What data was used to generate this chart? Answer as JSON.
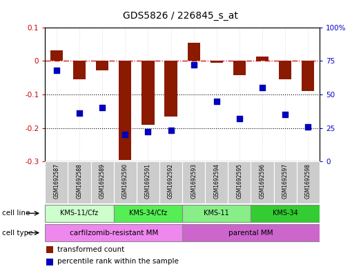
{
  "title": "GDS5826 / 226845_s_at",
  "samples": [
    "GSM1692587",
    "GSM1692588",
    "GSM1692589",
    "GSM1692590",
    "GSM1692591",
    "GSM1692592",
    "GSM1692593",
    "GSM1692594",
    "GSM1692595",
    "GSM1692596",
    "GSM1692597",
    "GSM1692598"
  ],
  "transformed_count": [
    0.032,
    -0.055,
    -0.028,
    -0.295,
    -0.19,
    -0.165,
    0.055,
    -0.005,
    -0.042,
    0.012,
    -0.055,
    -0.09
  ],
  "percentile_rank": [
    68,
    36,
    40,
    20,
    22,
    23,
    72,
    45,
    32,
    55,
    35,
    26
  ],
  "ylim_left": [
    -0.3,
    0.1
  ],
  "ylim_right": [
    0,
    100
  ],
  "yticks_left": [
    0.1,
    0.0,
    -0.1,
    -0.2,
    -0.3
  ],
  "ytick_labels_left": [
    "0.1",
    "0",
    "-0.1",
    "-0.2",
    "-0.3"
  ],
  "yticks_right": [
    100,
    75,
    50,
    25,
    0
  ],
  "ytick_labels_right": [
    "100%",
    "75",
    "50",
    "25",
    "0"
  ],
  "bar_color": "#8b1a00",
  "dot_color": "#0000bb",
  "cell_line_groups": [
    {
      "label": "KMS-11/Cfz",
      "indices": [
        0,
        1,
        2
      ],
      "color": "#ccffcc"
    },
    {
      "label": "KMS-34/Cfz",
      "indices": [
        3,
        4,
        5
      ],
      "color": "#55ee55"
    },
    {
      "label": "KMS-11",
      "indices": [
        6,
        7,
        8
      ],
      "color": "#88ee88"
    },
    {
      "label": "KMS-34",
      "indices": [
        9,
        10,
        11
      ],
      "color": "#33cc33"
    }
  ],
  "cell_type_groups": [
    {
      "label": "carfilzomib-resistant MM",
      "indices": [
        0,
        1,
        2,
        3,
        4,
        5
      ],
      "color": "#ee88ee"
    },
    {
      "label": "parental MM",
      "indices": [
        6,
        7,
        8,
        9,
        10,
        11
      ],
      "color": "#cc66cc"
    }
  ],
  "legend_items": [
    {
      "label": "transformed count",
      "color": "#8b1a00"
    },
    {
      "label": "percentile rank within the sample",
      "color": "#0000bb"
    }
  ],
  "bg_color": "#ffffff",
  "sample_bg_color": "#cccccc",
  "bar_width": 0.55,
  "dot_size": 28,
  "zero_line_color": "#cc0000",
  "dotted_line_color": "#000000",
  "left_label_color": "#cc0000",
  "right_label_color": "#0000cc",
  "title_fontsize": 10,
  "tick_fontsize": 7.5,
  "label_fontsize": 7.5,
  "legend_fontsize": 7.5
}
